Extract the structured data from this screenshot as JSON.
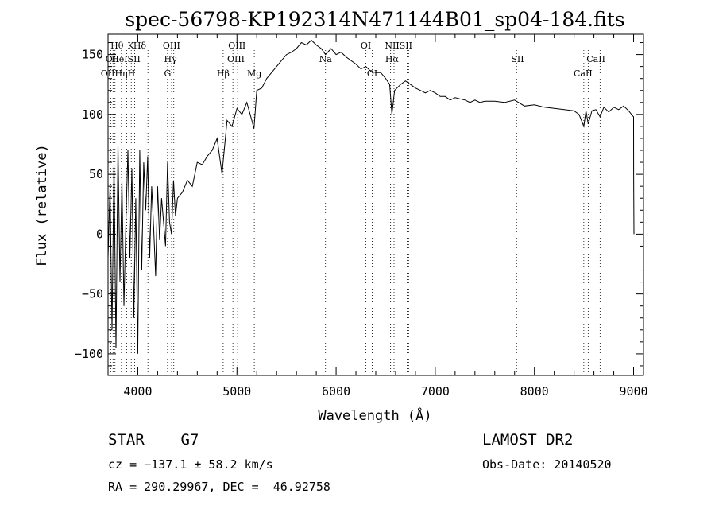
{
  "chart_data": {
    "type": "line",
    "title": "spec-56798-KP192314N471144B01_sp04-184.fits",
    "xlabel": "Wavelength (Å)",
    "ylabel": "Flux (relative)",
    "xlim": [
      3700,
      9100
    ],
    "ylim": [
      -118,
      167
    ],
    "xticks": [
      4000,
      5000,
      6000,
      7000,
      8000,
      9000
    ],
    "xtick_labels": [
      "4000",
      "5000",
      "6000",
      "7000",
      "8000",
      "9000"
    ],
    "yticks": [
      -100,
      -50,
      0,
      50,
      100,
      150
    ],
    "ytick_labels": [
      "−100",
      "−50",
      "0",
      "50",
      "100",
      "150"
    ],
    "grid": false,
    "series": [
      {
        "x": [
          3700,
          3720,
          3740,
          3760,
          3780,
          3800,
          3820,
          3840,
          3860,
          3880,
          3900,
          3920,
          3940,
          3960,
          3980,
          4000,
          4020,
          4040,
          4060,
          4080,
          4100,
          4120,
          4140,
          4160,
          4180,
          4200,
          4220,
          4240,
          4260,
          4280,
          4300,
          4320,
          4340,
          4360,
          4380,
          4400,
          4450,
          4500,
          4550,
          4600,
          4650,
          4700,
          4750,
          4800,
          4850,
          4860,
          4900,
          4950,
          5000,
          5050,
          5100,
          5150,
          5172,
          5200,
          5250,
          5300,
          5350,
          5400,
          5450,
          5500,
          5550,
          5600,
          5650,
          5700,
          5750,
          5800,
          5850,
          5893,
          5950,
          6000,
          6050,
          6100,
          6150,
          6200,
          6250,
          6300,
          6350,
          6400,
          6450,
          6500,
          6540,
          6563,
          6590,
          6650,
          6700,
          6750,
          6800,
          6850,
          6900,
          6950,
          7000,
          7050,
          7100,
          7150,
          7200,
          7250,
          7300,
          7350,
          7400,
          7450,
          7500,
          7600,
          7700,
          7800,
          7900,
          8000,
          8100,
          8200,
          8300,
          8400,
          8450,
          8498,
          8520,
          8542,
          8580,
          8620,
          8662,
          8700,
          8750,
          8800,
          8850,
          8900,
          8950,
          8980,
          9000,
          9001,
          9010
        ],
        "y": [
          -20,
          40,
          -80,
          60,
          -95,
          75,
          -40,
          45,
          -60,
          10,
          70,
          -20,
          55,
          -70,
          30,
          -100,
          70,
          -30,
          60,
          20,
          65,
          -20,
          40,
          5,
          -35,
          40,
          -5,
          30,
          10,
          -10,
          60,
          10,
          0,
          45,
          15,
          30,
          35,
          45,
          40,
          60,
          58,
          65,
          70,
          80,
          50,
          60,
          95,
          90,
          105,
          100,
          110,
          95,
          88,
          120,
          122,
          130,
          135,
          140,
          145,
          150,
          152,
          155,
          160,
          158,
          162,
          158,
          155,
          150,
          155,
          150,
          152,
          148,
          145,
          142,
          138,
          140,
          136,
          135,
          135,
          130,
          125,
          100,
          120,
          125,
          128,
          125,
          122,
          120,
          118,
          120,
          118,
          115,
          115,
          112,
          114,
          113,
          112,
          110,
          112,
          110,
          111,
          111,
          110,
          112,
          107,
          108,
          106,
          105,
          104,
          103,
          100,
          90,
          103,
          92,
          103,
          104,
          98,
          106,
          102,
          106,
          104,
          107,
          103,
          100,
          98,
          50,
          0
        ]
      }
    ],
    "lines": [
      {
        "w": 3727,
        "top": "OII"
      },
      {
        "w": 3750,
        "top": "HηH"
      },
      {
        "w": 3770,
        "top": "Hθ"
      },
      {
        "w": 3835,
        "top": "HeI"
      },
      {
        "w": 3889,
        "top": "H"
      },
      {
        "w": 3934,
        "top": "K"
      },
      {
        "w": 3969,
        "top": "H"
      },
      {
        "w": 4072,
        "top": "SII"
      },
      {
        "w": 4102,
        "top": "Hδ"
      },
      {
        "w": 4300,
        "top": "G"
      },
      {
        "w": 4341,
        "top": "Hγ"
      },
      {
        "w": 4363,
        "top": "OIII"
      },
      {
        "w": 4861,
        "top": "Hβ"
      },
      {
        "w": 4959,
        "top": "OIII"
      },
      {
        "w": 5007,
        "top": "OIII"
      },
      {
        "w": 5175,
        "top": "Mg"
      },
      {
        "w": 5893,
        "top": "Na"
      },
      {
        "w": 6300,
        "top": "OI"
      },
      {
        "w": 6364,
        "top": "OI"
      },
      {
        "w": 6548,
        "top": "NII"
      },
      {
        "w": 6563,
        "top": "Hα"
      },
      {
        "w": 6584,
        "top": "NII"
      },
      {
        "w": 6717,
        "top": "SII"
      },
      {
        "w": 6731,
        "top": "SII"
      },
      {
        "w": 7820,
        "top": "SII"
      },
      {
        "w": 8498,
        "top": "CaII"
      },
      {
        "w": 8542,
        "top": "CaII"
      },
      {
        "w": 8662,
        "top": "CaII"
      }
    ],
    "line_labels": [
      {
        "text": "Hθ",
        "w": 3790,
        "row": 0
      },
      {
        "text": "K",
        "w": 3928,
        "row": 0
      },
      {
        "text": "Hδ",
        "w": 4020,
        "row": 0
      },
      {
        "text": "OIII",
        "w": 4340,
        "row": 0
      },
      {
        "text": "OIII",
        "w": 5000,
        "row": 0
      },
      {
        "text": "OI",
        "w": 6300,
        "row": 0
      },
      {
        "text": "NIISII",
        "w": 6630,
        "row": 0
      },
      {
        "text": "OII",
        "w": 3745,
        "row": 1
      },
      {
        "text": "HeISII",
        "w": 3880,
        "row": 1
      },
      {
        "text": "Hγ",
        "w": 4330,
        "row": 1
      },
      {
        "text": "OIII",
        "w": 4990,
        "row": 1
      },
      {
        "text": "Na",
        "w": 5893,
        "row": 1
      },
      {
        "text": "Hα",
        "w": 6563,
        "row": 1
      },
      {
        "text": "SII",
        "w": 7830,
        "row": 1
      },
      {
        "text": "CaII",
        "w": 8620,
        "row": 1
      },
      {
        "text": "OIIHηH",
        "w": 3800,
        "row": 2
      },
      {
        "text": "G",
        "w": 4300,
        "row": 2
      },
      {
        "text": "Hβ",
        "w": 4861,
        "row": 2
      },
      {
        "text": "Mg",
        "w": 5175,
        "row": 2
      },
      {
        "text": "OI",
        "w": 6364,
        "row": 2
      },
      {
        "text": "CaII",
        "w": 8490,
        "row": 2
      }
    ]
  },
  "info": {
    "class_line": "STAR    G7",
    "cz_line": "cz = −137.1 ± 58.2 km/s",
    "radec_line": "RA = 290.29967, DEC =  46.92758",
    "survey": "LAMOST DR2",
    "obs_date": "Obs-Date: 20140520"
  }
}
